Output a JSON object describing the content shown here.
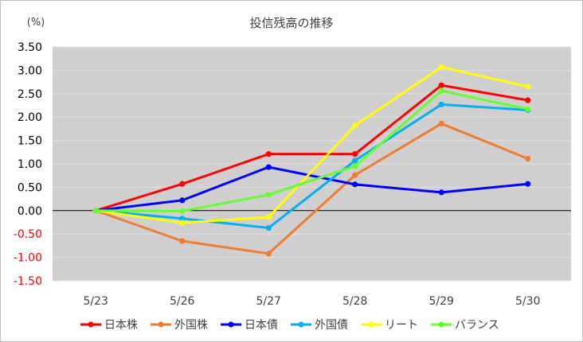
{
  "chart_data": {
    "type": "line",
    "title": "投信残高の推移",
    "ylabel": "(%)",
    "xlabel": "",
    "categories": [
      "5/23",
      "5/26",
      "5/27",
      "5/28",
      "5/29",
      "5/30"
    ],
    "ylim": [
      -1.5,
      3.5
    ],
    "yticks": [
      3.5,
      3.0,
      2.5,
      2.0,
      1.5,
      1.0,
      0.5,
      0.0,
      -0.5,
      -1.0,
      -1.5
    ],
    "ytick_labels": [
      "3.50",
      "3.00",
      "2.50",
      "2.00",
      "1.50",
      "1.00",
      "0.50",
      "0.00",
      "-0.50",
      "-1.00",
      "-1.50"
    ],
    "positive_tick_color": "#000000",
    "negative_tick_color": "#ff0000",
    "plot_background": "#d0cece",
    "grid": true,
    "grid_color": "#e3e1e1",
    "zero_line_color": "#000000",
    "legend_position": "bottom",
    "series": [
      {
        "name": "日本株",
        "color": "#ff0000",
        "values": [
          0.0,
          0.57,
          1.21,
          1.21,
          2.68,
          2.36
        ]
      },
      {
        "name": "外国株",
        "color": "#ed7d31",
        "values": [
          0.0,
          -0.65,
          -0.92,
          0.76,
          1.86,
          1.11
        ]
      },
      {
        "name": "日本債",
        "color": "#0000ff",
        "values": [
          0.0,
          0.22,
          0.93,
          0.56,
          0.39,
          0.57
        ]
      },
      {
        "name": "外国債",
        "color": "#00b0f0",
        "values": [
          0.0,
          -0.17,
          -0.37,
          1.07,
          2.27,
          2.15
        ]
      },
      {
        "name": "リート",
        "color": "#ffff00",
        "values": [
          0.0,
          -0.26,
          -0.14,
          1.82,
          3.07,
          2.65
        ]
      },
      {
        "name": "バランス",
        "color": "#66ff33",
        "values": [
          0.0,
          -0.01,
          0.34,
          0.95,
          2.56,
          2.17
        ]
      }
    ]
  }
}
